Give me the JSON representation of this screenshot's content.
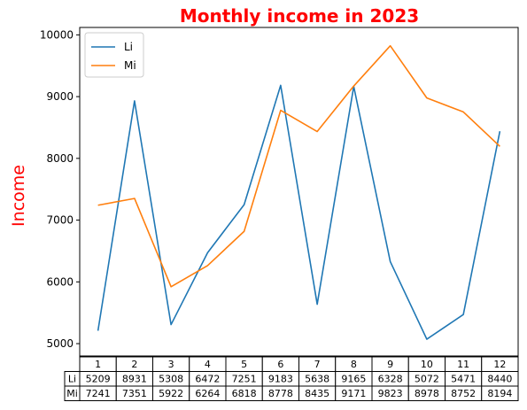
{
  "chart_data": {
    "type": "line",
    "title": "Monthly income in 2023",
    "ylabel": "Income",
    "xlabel": "",
    "categories": [
      "1",
      "2",
      "3",
      "4",
      "5",
      "6",
      "7",
      "8",
      "9",
      "10",
      "11",
      "12"
    ],
    "ylim": [
      4800,
      10120
    ],
    "yticks": [
      "5000",
      "6000",
      "7000",
      "8000",
      "9000",
      "10000"
    ],
    "series": [
      {
        "name": "Li",
        "color": "#1f77b4",
        "values": [
          5209,
          8931,
          5308,
          6472,
          7251,
          9183,
          5638,
          9165,
          6328,
          5072,
          5471,
          8440
        ]
      },
      {
        "name": "Mi",
        "color": "#ff7f0e",
        "values": [
          7241,
          7351,
          5922,
          6264,
          6818,
          8778,
          8435,
          9171,
          9823,
          8978,
          8752,
          8194
        ]
      }
    ],
    "title_color": "#ff0000",
    "ylabel_color": "#ff0000",
    "legend_position": "upper-left",
    "table": {
      "col_labels": [
        "1",
        "2",
        "3",
        "4",
        "5",
        "6",
        "7",
        "8",
        "9",
        "10",
        "11",
        "12"
      ],
      "rows": [
        {
          "label": "Li",
          "cells": [
            "5209",
            "8931",
            "5308",
            "6472",
            "7251",
            "9183",
            "5638",
            "9165",
            "6328",
            "5072",
            "5471",
            "8440"
          ]
        },
        {
          "label": "Mi",
          "cells": [
            "7241",
            "7351",
            "5922",
            "6264",
            "6818",
            "8778",
            "8435",
            "9171",
            "9823",
            "8978",
            "8752",
            "8194"
          ]
        }
      ]
    }
  }
}
